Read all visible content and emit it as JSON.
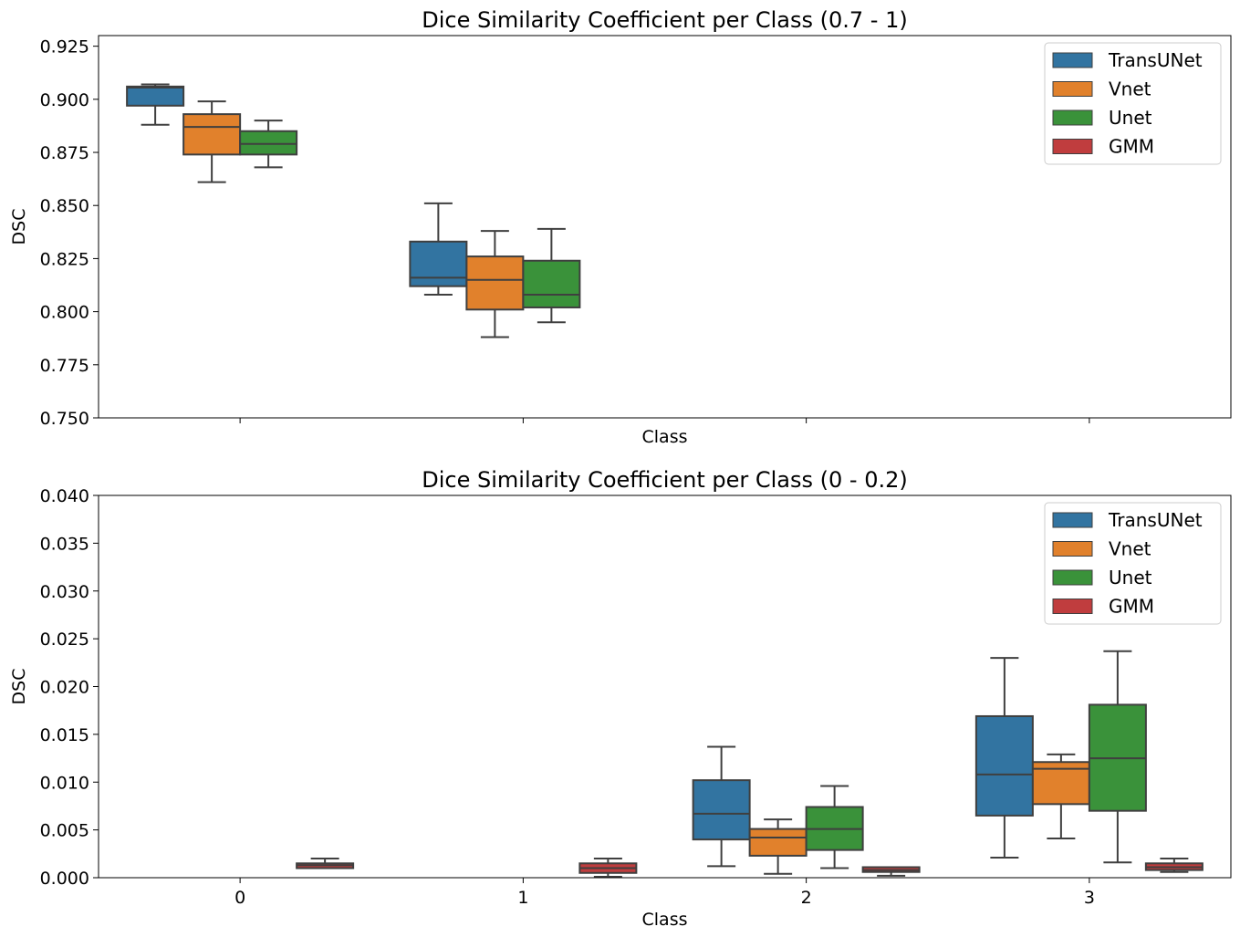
{
  "colors": {
    "TransUNet": "#3274a1",
    "Vnet": "#e1812c",
    "Unet": "#3a923a",
    "GMM": "#c03d3e",
    "line": "#3f3f3f"
  },
  "chart_data": [
    {
      "type": "box",
      "title": "Dice Similarity Coefficient per Class (0.7 - 1)",
      "xlabel": "Class",
      "ylabel": "DSC",
      "ylim": [
        0.75,
        0.93
      ],
      "yticks": [
        "0.750",
        "0.775",
        "0.800",
        "0.825",
        "0.850",
        "0.875",
        "0.900",
        "0.925"
      ],
      "show_xticklabels": false,
      "categories": [
        "0",
        "1",
        "2",
        "3"
      ],
      "legend": {
        "placement": "top-right",
        "entries": [
          "TransUNet",
          "Vnet",
          "Unet",
          "GMM"
        ]
      },
      "series": [
        {
          "name": "TransUNet",
          "boxes": [
            {
              "class": "0",
              "whislo": 0.888,
              "q1": 0.897,
              "med": 0.9055,
              "q3": 0.906,
              "whishi": 0.907
            },
            {
              "class": "1",
              "whislo": 0.808,
              "q1": 0.812,
              "med": 0.816,
              "q3": 0.833,
              "whishi": 0.851
            }
          ]
        },
        {
          "name": "Vnet",
          "boxes": [
            {
              "class": "0",
              "whislo": 0.861,
              "q1": 0.874,
              "med": 0.887,
              "q3": 0.893,
              "whishi": 0.899
            },
            {
              "class": "1",
              "whislo": 0.788,
              "q1": 0.801,
              "med": 0.815,
              "q3": 0.826,
              "whishi": 0.838
            }
          ]
        },
        {
          "name": "Unet",
          "boxes": [
            {
              "class": "0",
              "whislo": 0.868,
              "q1": 0.874,
              "med": 0.879,
              "q3": 0.885,
              "whishi": 0.89
            },
            {
              "class": "1",
              "whislo": 0.795,
              "q1": 0.802,
              "med": 0.808,
              "q3": 0.824,
              "whishi": 0.839
            }
          ]
        },
        {
          "name": "GMM",
          "boxes": []
        }
      ]
    },
    {
      "type": "box",
      "title": "Dice Similarity Coefficient per Class (0 - 0.2)",
      "xlabel": "Class",
      "ylabel": "DSC",
      "ylim": [
        0,
        0.04
      ],
      "yticks": [
        "0.000",
        "0.005",
        "0.010",
        "0.015",
        "0.020",
        "0.025",
        "0.030",
        "0.035",
        "0.040"
      ],
      "show_xticklabels": true,
      "categories": [
        "0",
        "1",
        "2",
        "3"
      ],
      "legend": {
        "placement": "top-right",
        "entries": [
          "TransUNet",
          "Vnet",
          "Unet",
          "GMM"
        ]
      },
      "series": [
        {
          "name": "TransUNet",
          "boxes": [
            {
              "class": "2",
              "whislo": 0.0012,
              "q1": 0.004,
              "med": 0.0067,
              "q3": 0.0102,
              "whishi": 0.0137
            },
            {
              "class": "3",
              "whislo": 0.0021,
              "q1": 0.0065,
              "med": 0.0108,
              "q3": 0.0169,
              "whishi": 0.023
            }
          ]
        },
        {
          "name": "Vnet",
          "boxes": [
            {
              "class": "2",
              "whislo": 0.0004,
              "q1": 0.0023,
              "med": 0.0042,
              "q3": 0.0051,
              "whishi": 0.0061
            },
            {
              "class": "3",
              "whislo": 0.0041,
              "q1": 0.0077,
              "med": 0.0114,
              "q3": 0.0121,
              "whishi": 0.0129
            }
          ]
        },
        {
          "name": "Unet",
          "boxes": [
            {
              "class": "2",
              "whislo": 0.001,
              "q1": 0.0029,
              "med": 0.0051,
              "q3": 0.0074,
              "whishi": 0.0096
            },
            {
              "class": "3",
              "whislo": 0.0016,
              "q1": 0.007,
              "med": 0.0125,
              "q3": 0.0181,
              "whishi": 0.0237
            }
          ]
        },
        {
          "name": "GMM",
          "boxes": [
            {
              "class": "0",
              "whislo": 0.001,
              "q1": 0.001,
              "med": 0.0013,
              "q3": 0.0015,
              "whishi": 0.002
            },
            {
              "class": "1",
              "whislo": 0.0001,
              "q1": 0.0005,
              "med": 0.001,
              "q3": 0.0015,
              "whishi": 0.002
            },
            {
              "class": "2",
              "whislo": 0.0002,
              "q1": 0.0006,
              "med": 0.0008,
              "q3": 0.0011,
              "whishi": 0.0011
            },
            {
              "class": "3",
              "whislo": 0.0006,
              "q1": 0.0008,
              "med": 0.0011,
              "q3": 0.0015,
              "whishi": 0.002
            }
          ]
        }
      ]
    }
  ]
}
